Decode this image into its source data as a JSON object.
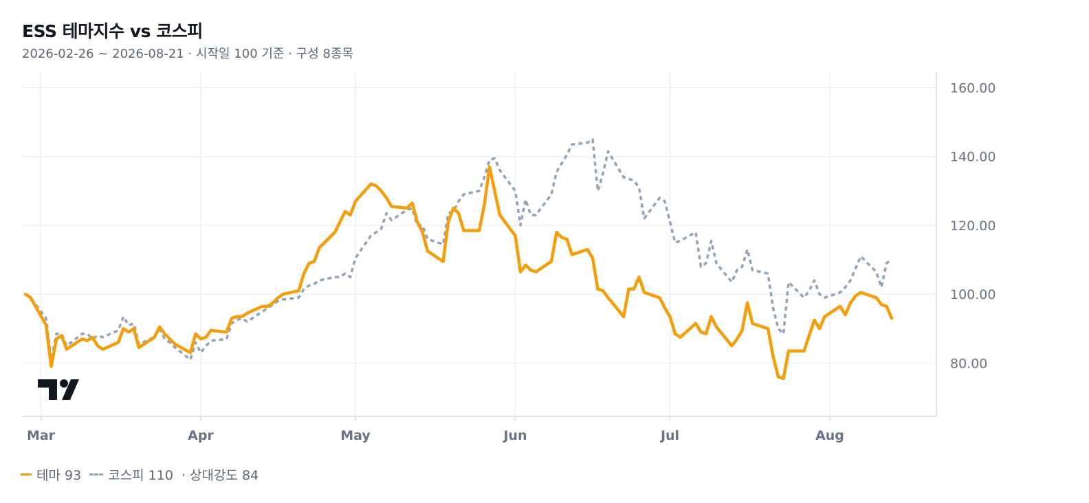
{
  "header": {
    "title": "ESS 테마지수 vs 코스피",
    "subtitle": "2026-02-26 ~ 2026-08-21 · 시작일 100 기준 · 구성 8종목"
  },
  "legend": {
    "theme_label": "테마 93",
    "kospi_label": "코스피 110",
    "relative_label": "· 상대강도 84"
  },
  "colors": {
    "theme": "#f59e0b",
    "kospi": "#94a3b8",
    "grid": "#eef1f5",
    "axis_text": "#6a7385",
    "logo": "#131722"
  },
  "icons": {
    "logo": "tradingview-logo-icon"
  },
  "chart_data": {
    "type": "line",
    "x_start": "2026-02-26",
    "x_end": "2026-08-21",
    "month_ticks": [
      {
        "date": "2026-03-01",
        "label": "Mar"
      },
      {
        "date": "2026-04-01",
        "label": "Apr"
      },
      {
        "date": "2026-05-01",
        "label": "May"
      },
      {
        "date": "2026-06-01",
        "label": "Jun"
      },
      {
        "date": "2026-07-01",
        "label": "Jul"
      },
      {
        "date": "2026-08-01",
        "label": "Aug"
      }
    ],
    "y_ticks": [
      {
        "value": 80,
        "label": "80.00"
      },
      {
        "value": 100,
        "label": "100.00"
      },
      {
        "value": 120,
        "label": "120.00"
      },
      {
        "value": 140,
        "label": "140.00"
      },
      {
        "value": 160,
        "label": "160.00"
      }
    ],
    "ylim": [
      64.5,
      164.5
    ],
    "grid": true,
    "y_axis_position": "right",
    "series": [
      {
        "name": "테마",
        "style": "solid",
        "points": [
          [
            "2026-02-26",
            100
          ],
          [
            "2026-02-27",
            99
          ],
          [
            "2026-03-02",
            91
          ],
          [
            "2026-03-03",
            79
          ],
          [
            "2026-03-04",
            87
          ],
          [
            "2026-03-05",
            88
          ],
          [
            "2026-03-06",
            84
          ],
          [
            "2026-03-09",
            87
          ],
          [
            "2026-03-10",
            86.5
          ],
          [
            "2026-03-11",
            87.5
          ],
          [
            "2026-03-12",
            85
          ],
          [
            "2026-03-13",
            84
          ],
          [
            "2026-03-16",
            86
          ],
          [
            "2026-03-17",
            90
          ],
          [
            "2026-03-18",
            89
          ],
          [
            "2026-03-19",
            90
          ],
          [
            "2026-03-20",
            84.5
          ],
          [
            "2026-03-23",
            87.5
          ],
          [
            "2026-03-24",
            90.5
          ],
          [
            "2026-03-25",
            88.5
          ],
          [
            "2026-03-26",
            87
          ],
          [
            "2026-03-27",
            85.5
          ],
          [
            "2026-03-30",
            83
          ],
          [
            "2026-03-31",
            88.5
          ],
          [
            "2026-04-01",
            87
          ],
          [
            "2026-04-02",
            87.5
          ],
          [
            "2026-04-03",
            89.5
          ],
          [
            "2026-04-06",
            89
          ],
          [
            "2026-04-07",
            93
          ],
          [
            "2026-04-08",
            93.5
          ],
          [
            "2026-04-09",
            93.5
          ],
          [
            "2026-04-10",
            94.5
          ],
          [
            "2026-04-13",
            96.5
          ],
          [
            "2026-04-14",
            96.5
          ],
          [
            "2026-04-15",
            97.5
          ],
          [
            "2026-04-16",
            99
          ],
          [
            "2026-04-17",
            100
          ],
          [
            "2026-04-20",
            101
          ],
          [
            "2026-04-21",
            106
          ],
          [
            "2026-04-22",
            109
          ],
          [
            "2026-04-23",
            109.5
          ],
          [
            "2026-04-24",
            113.5
          ],
          [
            "2026-04-27",
            118
          ],
          [
            "2026-04-28",
            121
          ],
          [
            "2026-04-29",
            124
          ],
          [
            "2026-04-30",
            123
          ],
          [
            "2026-05-01",
            127
          ],
          [
            "2026-05-04",
            132
          ],
          [
            "2026-05-05",
            131.5
          ],
          [
            "2026-05-06",
            130
          ],
          [
            "2026-05-07",
            128
          ],
          [
            "2026-05-08",
            125.5
          ],
          [
            "2026-05-11",
            125
          ],
          [
            "2026-05-12",
            126.5
          ],
          [
            "2026-05-13",
            121
          ],
          [
            "2026-05-14",
            118
          ],
          [
            "2026-05-15",
            112.5
          ],
          [
            "2026-05-18",
            109.5
          ],
          [
            "2026-05-19",
            121
          ],
          [
            "2026-05-20",
            125
          ],
          [
            "2026-05-21",
            123.5
          ],
          [
            "2026-05-22",
            118.5
          ],
          [
            "2026-05-25",
            118.5
          ],
          [
            "2026-05-26",
            126
          ],
          [
            "2026-05-27",
            137
          ],
          [
            "2026-05-28",
            130
          ],
          [
            "2026-05-29",
            123
          ],
          [
            "2026-06-01",
            117
          ],
          [
            "2026-06-02",
            106.5
          ],
          [
            "2026-06-03",
            108.5
          ],
          [
            "2026-06-04",
            107
          ],
          [
            "2026-06-05",
            106.5
          ],
          [
            "2026-06-08",
            109.5
          ],
          [
            "2026-06-09",
            118
          ],
          [
            "2026-06-10",
            116.5
          ],
          [
            "2026-06-11",
            116
          ],
          [
            "2026-06-12",
            111.5
          ],
          [
            "2026-06-15",
            113
          ],
          [
            "2026-06-16",
            110.5
          ],
          [
            "2026-06-17",
            101.5
          ],
          [
            "2026-06-18",
            101
          ],
          [
            "2026-06-19",
            99
          ],
          [
            "2026-06-22",
            93.5
          ],
          [
            "2026-06-23",
            101.5
          ],
          [
            "2026-06-24",
            101.5
          ],
          [
            "2026-06-25",
            105
          ],
          [
            "2026-06-26",
            100.5
          ],
          [
            "2026-06-29",
            99
          ],
          [
            "2026-06-30",
            96
          ],
          [
            "2026-07-01",
            93.5
          ],
          [
            "2026-07-02",
            88.5
          ],
          [
            "2026-07-03",
            87.5
          ],
          [
            "2026-07-06",
            91.5
          ],
          [
            "2026-07-07",
            89
          ],
          [
            "2026-07-08",
            88.5
          ],
          [
            "2026-07-09",
            93.5
          ],
          [
            "2026-07-10",
            90.5
          ],
          [
            "2026-07-13",
            85
          ],
          [
            "2026-07-14",
            87
          ],
          [
            "2026-07-15",
            89.5
          ],
          [
            "2026-07-16",
            97.5
          ],
          [
            "2026-07-17",
            91.5
          ],
          [
            "2026-07-20",
            90
          ],
          [
            "2026-07-21",
            82
          ],
          [
            "2026-07-22",
            76
          ],
          [
            "2026-07-23",
            75.5
          ],
          [
            "2026-07-24",
            83.5
          ],
          [
            "2026-07-27",
            83.5
          ],
          [
            "2026-07-28",
            88
          ],
          [
            "2026-07-29",
            92.5
          ],
          [
            "2026-07-30",
            90
          ],
          [
            "2026-07-31",
            93.5
          ],
          [
            "2026-08-03",
            96.5
          ],
          [
            "2026-08-04",
            94
          ],
          [
            "2026-08-05",
            97.5
          ],
          [
            "2026-08-06",
            99.5
          ],
          [
            "2026-08-07",
            100.5
          ],
          [
            "2026-08-10",
            99
          ],
          [
            "2026-08-11",
            97
          ],
          [
            "2026-08-12",
            96.5
          ],
          [
            "2026-08-13",
            93
          ]
        ]
      },
      {
        "name": "코스피",
        "style": "dashed",
        "points": [
          [
            "2026-02-26",
            100
          ],
          [
            "2026-02-27",
            99
          ],
          [
            "2026-03-02",
            93
          ],
          [
            "2026-03-03",
            81
          ],
          [
            "2026-03-04",
            88.5
          ],
          [
            "2026-03-05",
            88.5
          ],
          [
            "2026-03-06",
            85
          ],
          [
            "2026-03-09",
            88.5
          ],
          [
            "2026-03-10",
            88.5
          ],
          [
            "2026-03-11",
            87
          ],
          [
            "2026-03-12",
            88
          ],
          [
            "2026-03-13",
            87.5
          ],
          [
            "2026-03-16",
            89.5
          ],
          [
            "2026-03-17",
            93.5
          ],
          [
            "2026-03-18",
            91
          ],
          [
            "2026-03-19",
            91.5
          ],
          [
            "2026-03-20",
            85.5
          ],
          [
            "2026-03-23",
            87.5
          ],
          [
            "2026-03-24",
            90
          ],
          [
            "2026-03-25",
            87
          ],
          [
            "2026-03-26",
            86
          ],
          [
            "2026-03-27",
            84.5
          ],
          [
            "2026-03-30",
            81
          ],
          [
            "2026-03-31",
            86
          ],
          [
            "2026-04-01",
            83
          ],
          [
            "2026-04-02",
            85
          ],
          [
            "2026-04-03",
            86.5
          ],
          [
            "2026-04-06",
            87
          ],
          [
            "2026-04-07",
            91.5
          ],
          [
            "2026-04-08",
            92.5
          ],
          [
            "2026-04-09",
            93
          ],
          [
            "2026-04-10",
            92
          ],
          [
            "2026-04-13",
            95
          ],
          [
            "2026-04-14",
            96
          ],
          [
            "2026-04-15",
            97
          ],
          [
            "2026-04-16",
            98
          ],
          [
            "2026-04-17",
            98.5
          ],
          [
            "2026-04-20",
            99
          ],
          [
            "2026-04-21",
            101.5
          ],
          [
            "2026-04-22",
            102.5
          ],
          [
            "2026-04-23",
            103
          ],
          [
            "2026-04-24",
            104
          ],
          [
            "2026-04-27",
            105
          ],
          [
            "2026-04-28",
            105
          ],
          [
            "2026-04-29",
            106
          ],
          [
            "2026-04-30",
            105
          ],
          [
            "2026-05-01",
            110.5
          ],
          [
            "2026-05-04",
            117
          ],
          [
            "2026-05-05",
            118
          ],
          [
            "2026-05-06",
            119
          ],
          [
            "2026-05-07",
            123.5
          ],
          [
            "2026-05-08",
            121.5
          ],
          [
            "2026-05-11",
            124.5
          ],
          [
            "2026-05-12",
            125
          ],
          [
            "2026-05-13",
            120
          ],
          [
            "2026-05-14",
            120
          ],
          [
            "2026-05-15",
            116
          ],
          [
            "2026-05-18",
            114.5
          ],
          [
            "2026-05-19",
            123.5
          ],
          [
            "2026-05-20",
            124
          ],
          [
            "2026-05-21",
            127
          ],
          [
            "2026-05-22",
            129
          ],
          [
            "2026-05-25",
            130
          ],
          [
            "2026-05-26",
            134
          ],
          [
            "2026-05-27",
            139
          ],
          [
            "2026-05-28",
            139.5
          ],
          [
            "2026-05-29",
            136
          ],
          [
            "2026-06-01",
            130
          ],
          [
            "2026-06-02",
            120
          ],
          [
            "2026-06-03",
            127.5
          ],
          [
            "2026-06-04",
            123
          ],
          [
            "2026-06-05",
            123
          ],
          [
            "2026-06-08",
            129
          ],
          [
            "2026-06-09",
            135.5
          ],
          [
            "2026-06-10",
            138
          ],
          [
            "2026-06-11",
            140.5
          ],
          [
            "2026-06-12",
            143.5
          ],
          [
            "2026-06-15",
            144
          ],
          [
            "2026-06-16",
            145
          ],
          [
            "2026-06-17",
            130
          ],
          [
            "2026-06-18",
            135
          ],
          [
            "2026-06-19",
            141.5
          ],
          [
            "2026-06-22",
            134
          ],
          [
            "2026-06-23",
            133.5
          ],
          [
            "2026-06-24",
            133
          ],
          [
            "2026-06-25",
            131
          ],
          [
            "2026-06-26",
            122
          ],
          [
            "2026-06-29",
            128
          ],
          [
            "2026-06-30",
            127
          ],
          [
            "2026-07-01",
            121
          ],
          [
            "2026-07-02",
            115
          ],
          [
            "2026-07-03",
            115.5
          ],
          [
            "2026-07-06",
            118
          ],
          [
            "2026-07-07",
            108
          ],
          [
            "2026-07-08",
            109
          ],
          [
            "2026-07-09",
            115.5
          ],
          [
            "2026-07-10",
            109
          ],
          [
            "2026-07-13",
            103.5
          ],
          [
            "2026-07-14",
            107
          ],
          [
            "2026-07-15",
            108
          ],
          [
            "2026-07-16",
            113
          ],
          [
            "2026-07-17",
            107
          ],
          [
            "2026-07-20",
            106
          ],
          [
            "2026-07-21",
            96
          ],
          [
            "2026-07-22",
            90
          ],
          [
            "2026-07-23",
            88.5
          ],
          [
            "2026-07-24",
            103.5
          ],
          [
            "2026-07-27",
            99
          ],
          [
            "2026-07-28",
            101
          ],
          [
            "2026-07-29",
            104
          ],
          [
            "2026-07-30",
            100
          ],
          [
            "2026-07-31",
            99
          ],
          [
            "2026-08-03",
            100.5
          ],
          [
            "2026-08-04",
            102
          ],
          [
            "2026-08-05",
            104
          ],
          [
            "2026-08-06",
            107.5
          ],
          [
            "2026-08-07",
            111
          ],
          [
            "2026-08-10",
            106.5
          ],
          [
            "2026-08-11",
            102
          ],
          [
            "2026-08-12",
            109
          ],
          [
            "2026-08-13",
            110
          ]
        ]
      }
    ]
  }
}
